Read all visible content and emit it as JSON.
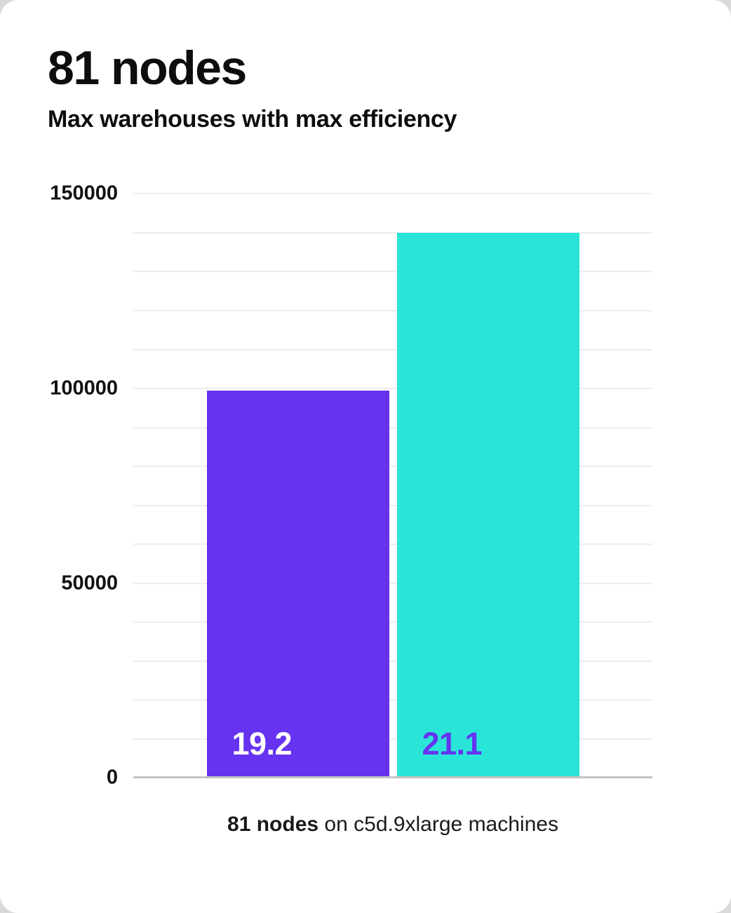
{
  "header": {
    "title": "81 nodes",
    "subtitle": "Max warehouses with max efficiency"
  },
  "chart_data": {
    "type": "bar",
    "title": "81 nodes",
    "subtitle": "Max warehouses with max efficiency",
    "ylabel": "",
    "xlabel": "",
    "ylim": [
      0,
      150000
    ],
    "yticks": [
      0,
      50000,
      100000,
      150000
    ],
    "minor_grid_step": 10000,
    "grid": true,
    "legend": "none",
    "bars": [
      {
        "name": "purple-bar",
        "label": "19.2",
        "value": 99500,
        "color": "#6633f0",
        "label_color": "#ffffff"
      },
      {
        "name": "cyan-bar",
        "label": "21.1",
        "value": 140000,
        "color": "#29e5d8",
        "label_color": "#6633f0"
      }
    ],
    "caption": {
      "bold": "81 nodes",
      "rest": " on c5d.9xlarge machines"
    }
  },
  "colors": {
    "accent_purple": "#6633f0",
    "accent_cyan": "#29e5d8",
    "gridline": "#ededed",
    "axis_line": "#c4c4c4",
    "text": "#0d0d0d",
    "card_background": "#ffffff"
  }
}
